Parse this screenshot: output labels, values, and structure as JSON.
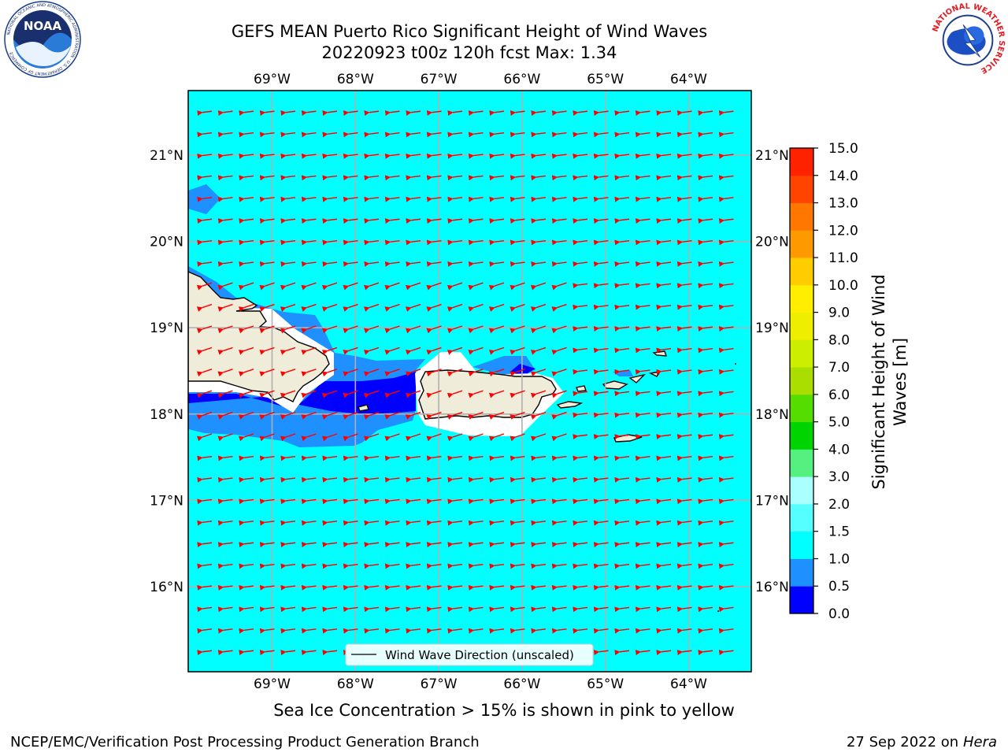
{
  "title": {
    "line1": "GEFS MEAN Puerto Rico Significant Height of Wind Waves",
    "line2": "20220923 t00z 120h fcst   Max: 1.34"
  },
  "map": {
    "lon_labels": [
      "69°W",
      "68°W",
      "67°W",
      "66°W",
      "65°W",
      "64°W"
    ],
    "lat_labels": [
      "21°N",
      "20°N",
      "19°N",
      "18°N",
      "17°N",
      "16°N"
    ],
    "legend_label": "Wind Wave Direction (unscaled)",
    "background_color": "#00ffff",
    "land_color": "#efedda",
    "arrow_color": "#ff0000",
    "arrow_direction": "from east toward west"
  },
  "colorbar": {
    "title_line1": "Significant Height of Wind",
    "title_line2": "Waves [m]",
    "tick_labels": [
      "0.0",
      "0.5",
      "1.0",
      "1.5",
      "2.0",
      "3.0",
      "4.0",
      "5.0",
      "6.0",
      "7.0",
      "8.0",
      "9.0",
      "10.0",
      "11.0",
      "12.0",
      "13.0",
      "14.0",
      "15.0"
    ],
    "colors": [
      "#0000ff",
      "#1e90ff",
      "#00ffff",
      "#55ffff",
      "#aaffff",
      "#55f07f",
      "#00d400",
      "#55dd00",
      "#aadd00",
      "#ccee00",
      "#eeee00",
      "#ffee00",
      "#ffcc00",
      "#ff9900",
      "#ff7700",
      "#ff4400",
      "#ff2200"
    ]
  },
  "footer": {
    "sea_ice_note": "Sea Ice Concentration > 15% is shown in pink to yellow",
    "credit": "NCEP/EMC/Verification Post Processing Product Generation Branch",
    "date_text": "27 Sep 2022 on",
    "host": "Hera"
  },
  "logos": {
    "noaa_text": "NOAA",
    "noaa_ring": "NATIONAL OCEANIC AND ATMOSPHERIC ADMINISTRATION · U.S. DEPARTMENT OF COMMERCE",
    "nws_ring": "NATIONAL WEATHER SERVICE"
  }
}
